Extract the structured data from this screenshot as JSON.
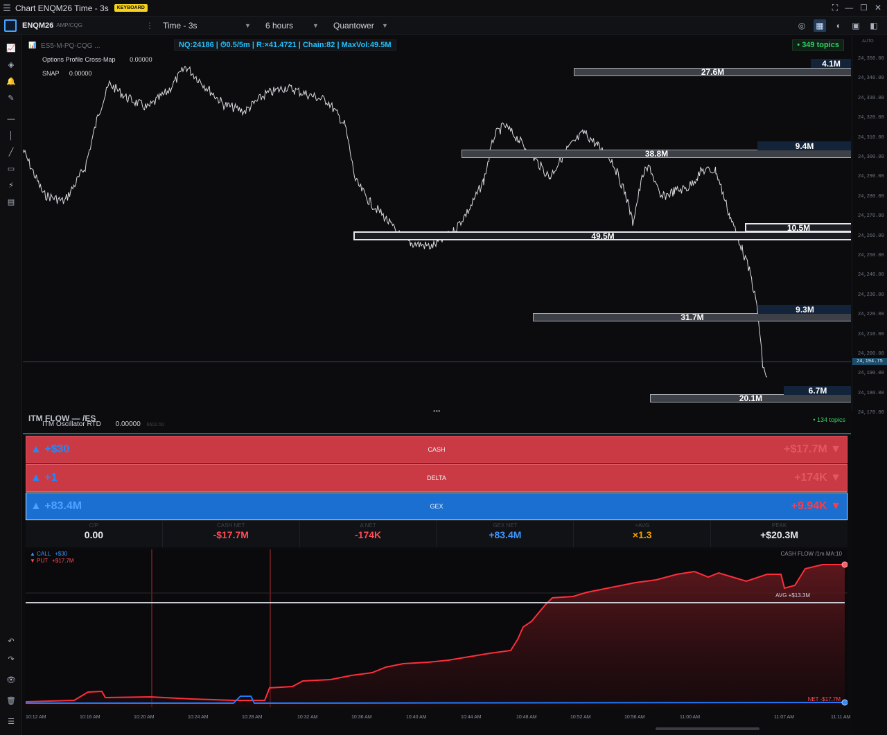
{
  "window": {
    "title": "Chart ENQM26 Time - 3s",
    "badge": "KEYBOARD"
  },
  "toolbar": {
    "symbol": "ENQM26",
    "feed": "AMP/CQG",
    "timeframe": "Time - 3s",
    "range": "6 hours",
    "provider": "Quantower"
  },
  "chart": {
    "overlay_ghost": "ES5-M-PQ-CQG  ...",
    "overlay_title": "Options Profile Cross-Map",
    "overlay_ghost_val": "0.00000",
    "indicator1_name": "Options Profile Cross-Map",
    "indicator1_value": "0.00000",
    "indicator2_name": "SNAP",
    "indicator2_value": "0.00000",
    "infobar": "NQ:24186 | ⏱0.5/5m | R:×41.4721 | Chain:82 | MaxVol:49.5M",
    "topics": "• 349 topics",
    "auto_label": "AUTO",
    "price_label": "24,194.75",
    "y_ticks": [
      "24,350.00",
      "24,340.00",
      "24,330.00",
      "24,320.00",
      "24,310.00",
      "24,300.00",
      "24,290.00",
      "24,280.00",
      "24,270.00",
      "24,260.00",
      "24,250.00",
      "24,240.00",
      "24,230.00",
      "24,220.00",
      "24,210.00",
      "24,200.00",
      "24,190.00",
      "24,180.00",
      "24,170.00"
    ],
    "levels": [
      {
        "label": "27.6M"
      },
      {
        "label": "38.8M"
      },
      {
        "label": "49.5M"
      },
      {
        "label": "31.7M"
      },
      {
        "label": "20.1M"
      }
    ],
    "calls": [
      {
        "label": "4.1M"
      },
      {
        "label": "9.4M"
      },
      {
        "label": "10.5M"
      },
      {
        "label": "9.3M"
      },
      {
        "label": "6.7M"
      }
    ]
  },
  "itm": {
    "header": "ITM FLOW — /ES",
    "sub_name": "ITM Oscillator RTD",
    "sub_value": "0.00000",
    "sub_ghost": "6602.50",
    "topics": "• 134 topics",
    "bars": [
      {
        "name": "CASH",
        "left": "▲ +$30",
        "right": "+$17.7M ▼"
      },
      {
        "name": "DELTA",
        "left": "▲ +1",
        "right": "+174K ▼"
      },
      {
        "name": "GEX",
        "left": "▲ +83.4M",
        "right": "+9.94K ▼"
      }
    ],
    "stats": [
      {
        "key": "C/P",
        "value": "0.00",
        "color": "#e7e9ee"
      },
      {
        "key": "CASH NET",
        "value": "-$17.7M",
        "color": "#ff4b55"
      },
      {
        "key": "Δ NET",
        "value": "-174K",
        "color": "#ff4b55"
      },
      {
        "key": "GEX NET",
        "value": "+83.4M",
        "color": "#3f97ff"
      },
      {
        "key": "×AVG",
        "value": "×1.3",
        "color": "#f2a200"
      },
      {
        "key": "PEAK",
        "value": "+$20.3M",
        "color": "#e7e9ee"
      }
    ],
    "flow": {
      "call_label": "▲ CALL",
      "call_value": "+$30",
      "put_label": "▼ PUT",
      "put_value": "+$17.7M",
      "title": "CASH FLOW  /1m  MA:10",
      "avg": "AVG +$13.3M",
      "net": "NET -$17.7M"
    },
    "x_ticks": [
      "10:12 AM",
      "10:16 AM",
      "10:20 AM",
      "10:24 AM",
      "10:28 AM",
      "10:32 AM",
      "10:36 AM",
      "10:40 AM",
      "10:44 AM",
      "10:48 AM",
      "10:52 AM",
      "10:56 AM",
      "11:00 AM",
      "11:07 AM",
      "11:11 AM"
    ]
  }
}
